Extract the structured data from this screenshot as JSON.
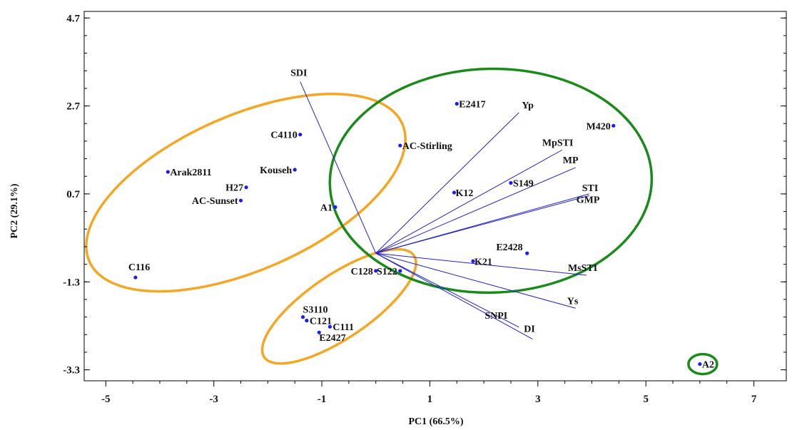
{
  "chart_data": {
    "type": "scatter",
    "subtype": "biplot",
    "title": "",
    "xlabel": "PC1 (66.5%)",
    "ylabel": "PC2 (29.1%)",
    "xlim": [
      -5.4,
      7.6
    ],
    "ylim": [
      -3.55,
      4.85
    ],
    "xticks": [
      -5,
      -3,
      -1,
      1,
      3,
      5,
      7
    ],
    "yticks": [
      4.7,
      2.7,
      0.7,
      -1.3,
      -3.3
    ],
    "grid": false,
    "legend": "none",
    "origin": [
      0,
      -0.65
    ],
    "points": [
      {
        "label": "E2417",
        "x": 1.5,
        "y": 2.75
      },
      {
        "label": "AC-Stirling",
        "x": 0.45,
        "y": 1.8
      },
      {
        "label": "M420",
        "x": 4.4,
        "y": 2.25
      },
      {
        "label": "S149",
        "x": 2.5,
        "y": 0.95
      },
      {
        "label": "K12",
        "x": 1.45,
        "y": 0.73
      },
      {
        "label": "E2428",
        "x": 2.8,
        "y": -0.65
      },
      {
        "label": "K21",
        "x": 1.8,
        "y": -0.83
      },
      {
        "label": "S122",
        "x": 0.45,
        "y": -1.05
      },
      {
        "label": "C128",
        "x": 0.0,
        "y": -1.05
      },
      {
        "label": "C4110",
        "x": -1.4,
        "y": 2.05
      },
      {
        "label": "Arak2811",
        "x": -3.85,
        "y": 1.2
      },
      {
        "label": "Kouseh",
        "x": -1.5,
        "y": 1.25
      },
      {
        "label": "H27",
        "x": -2.4,
        "y": 0.85
      },
      {
        "label": "AC-Sunset",
        "x": -2.5,
        "y": 0.55
      },
      {
        "label": "A1",
        "x": -0.75,
        "y": 0.4
      },
      {
        "label": "C116",
        "x": -4.45,
        "y": -1.2
      },
      {
        "label": "S3110",
        "x": -1.35,
        "y": -2.1
      },
      {
        "label": "C121",
        "x": -1.28,
        "y": -2.18
      },
      {
        "label": "C111",
        "x": -0.85,
        "y": -2.32
      },
      {
        "label": "E2427",
        "x": -1.05,
        "y": -2.45
      },
      {
        "label": "A2",
        "x": 6.0,
        "y": -3.17
      }
    ],
    "vectors": [
      {
        "label": "SDI",
        "x": -1.4,
        "y": 3.25
      },
      {
        "label": "Yp",
        "x": 2.65,
        "y": 2.55
      },
      {
        "label": "MpSTI",
        "x": 3.45,
        "y": 1.7
      },
      {
        "label": "MP",
        "x": 3.7,
        "y": 1.3
      },
      {
        "label": "STI",
        "x": 3.95,
        "y": 0.7
      },
      {
        "label": "GMP",
        "x": 3.95,
        "y": 0.66
      },
      {
        "label": "MsSTI",
        "x": 3.9,
        "y": -1.15
      },
      {
        "label": "Ys",
        "x": 3.7,
        "y": -1.9
      },
      {
        "label": "SNPI",
        "x": 2.65,
        "y": -2.33
      },
      {
        "label": "DI",
        "x": 2.9,
        "y": -2.6
      }
    ],
    "groups": [
      {
        "color": "#f5a623",
        "members": [
          "C4110",
          "Arak2811",
          "Kouseh",
          "H27",
          "AC-Sunset",
          "A1",
          "C116"
        ]
      },
      {
        "color": "#f5a623",
        "members": [
          "C128",
          "S122",
          "S3110",
          "C121",
          "C111",
          "E2427"
        ]
      },
      {
        "color": "#1a8a1a",
        "members": [
          "E2417",
          "AC-Stirling",
          "M420",
          "S149",
          "K12",
          "E2428",
          "K21"
        ]
      },
      {
        "color": "#1a8a1a",
        "members": [
          "A2"
        ]
      }
    ],
    "colors": {
      "points": "#1a1aff",
      "vectors": "#2222cc",
      "axis": "#000000"
    }
  }
}
